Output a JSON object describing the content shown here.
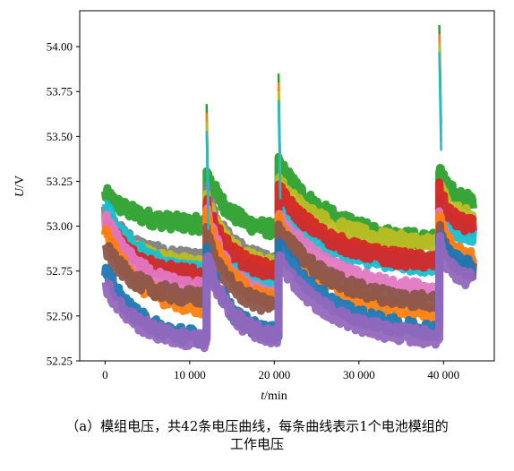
{
  "chart_data": {
    "type": "line",
    "xlabel": "t/min",
    "xlabel_parts": {
      "var": "t",
      "unit": "/min"
    },
    "ylabel": "U/V",
    "ylabel_parts": {
      "var": "U",
      "unit": "/V"
    },
    "xlim": [
      -3000,
      46000
    ],
    "ylim": [
      52.25,
      54.2
    ],
    "x_ticks": [
      0,
      10000,
      20000,
      30000,
      40000
    ],
    "x_tick_labels": [
      "0",
      "10 000",
      "20 000",
      "30 000",
      "40 000"
    ],
    "y_ticks": [
      52.25,
      52.5,
      52.75,
      53.0,
      53.25,
      53.5,
      53.75,
      54.0
    ],
    "y_tick_labels": [
      "52.25",
      "52.50",
      "52.75",
      "53.00",
      "53.25",
      "53.50",
      "53.75",
      "54.00"
    ],
    "grid": false,
    "legend": "none",
    "segments": [
      {
        "start": 0,
        "end": 12000
      },
      {
        "start": 12000,
        "end": 20500
      },
      {
        "start": 20500,
        "end": 39500
      },
      {
        "start": 39500,
        "end": 43500
      }
    ],
    "series": [
      {
        "color": "#2ca02c",
        "values": [
          [
            53.18,
            53.01
          ],
          [
            53.3,
            52.98
          ],
          [
            53.35,
            52.92
          ],
          [
            53.33,
            53.14
          ]
        ]
      },
      {
        "color": "#7f7f7f",
        "values": [
          [
            53.07,
            52.81
          ],
          [
            53.18,
            52.8
          ],
          [
            53.2,
            52.8
          ],
          [
            53.2,
            53.0
          ]
        ]
      },
      {
        "color": "#bcbd22",
        "values": [
          [
            53.04,
            52.78
          ],
          [
            53.14,
            52.78
          ],
          [
            53.24,
            52.9
          ],
          [
            53.23,
            53.05
          ]
        ]
      },
      {
        "color": "#17becf",
        "values": [
          [
            53.12,
            52.74
          ],
          [
            53.09,
            52.7
          ],
          [
            53.1,
            52.78
          ],
          [
            53.14,
            52.95
          ]
        ]
      },
      {
        "color": "#d62728",
        "values": [
          [
            53.03,
            52.72
          ],
          [
            53.12,
            52.75
          ],
          [
            53.2,
            52.8
          ],
          [
            53.2,
            53.0
          ]
        ]
      },
      {
        "color": "#e377c2",
        "values": [
          [
            53.05,
            52.65
          ],
          [
            53.08,
            52.6
          ],
          [
            53.06,
            52.64
          ],
          [
            53.05,
            52.8
          ]
        ]
      },
      {
        "color": "#ff7f0e",
        "values": [
          [
            52.98,
            52.55
          ],
          [
            53.05,
            52.58
          ],
          [
            53.02,
            52.52
          ],
          [
            53.04,
            52.82
          ]
        ]
      },
      {
        "color": "#8c564b",
        "values": [
          [
            52.88,
            52.6
          ],
          [
            52.96,
            52.55
          ],
          [
            52.99,
            52.58
          ],
          [
            52.98,
            52.76
          ]
        ]
      },
      {
        "color": "#1f77b4",
        "values": [
          [
            52.75,
            52.38
          ],
          [
            52.84,
            52.4
          ],
          [
            52.9,
            52.42
          ],
          [
            52.95,
            52.78
          ]
        ]
      },
      {
        "color": "#9467bd",
        "values": [
          [
            52.68,
            52.36
          ],
          [
            52.84,
            52.38
          ],
          [
            52.82,
            52.38
          ],
          [
            52.92,
            52.7
          ]
        ]
      }
    ],
    "peaks": [
      {
        "x": 12000,
        "y": 53.68
      },
      {
        "x": 20500,
        "y": 53.85
      },
      {
        "x": 39500,
        "y": 54.12
      }
    ]
  },
  "caption": {
    "line1": "（a）模组电压，共42条电压曲线，每条曲线表示1个电池模组的",
    "line2": "工作电压"
  }
}
